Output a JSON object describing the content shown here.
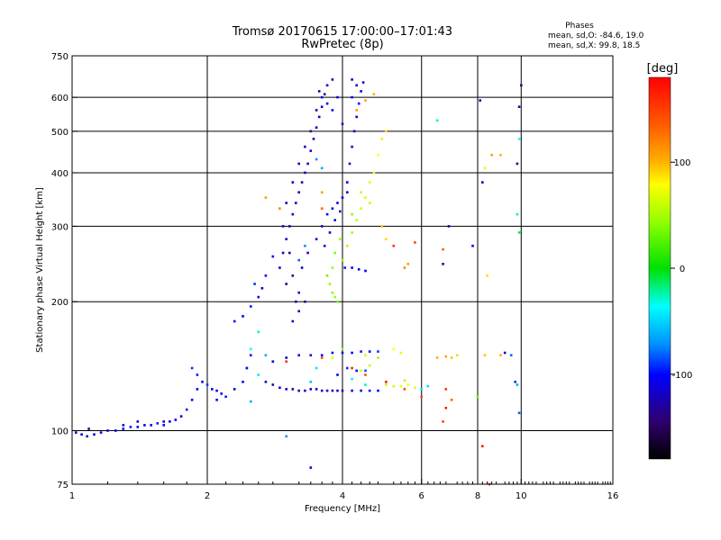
{
  "title_line1": "Tromsø 20170615 17:00:00–17:01:43",
  "title_line2": "RwPretec (8p)",
  "stats": {
    "header": "Phases",
    "line1": "mean, sd,O: -84.6, 19.0",
    "line2": "mean, sd,X:  99.8, 18.5"
  },
  "colorbar": {
    "label": "[deg]",
    "range": [
      -180,
      180
    ],
    "ticks": [
      {
        "value": 100,
        "label": "100"
      },
      {
        "value": 0,
        "label": "0"
      },
      {
        "value": -100,
        "label": "-100"
      }
    ]
  },
  "chart_data": {
    "type": "scatter",
    "title": "Tromsø 20170615 17:00:00–17:01:43 RwPretec (8p)",
    "xlabel": "Frequency [MHz]",
    "ylabel": "Stationary phase Virtual Height [km]",
    "xscale": "log",
    "yscale": "log",
    "xlim": [
      1,
      16
    ],
    "ylim": [
      75,
      750
    ],
    "x_ticks": [
      {
        "value": 1,
        "label": "1"
      },
      {
        "value": 2,
        "label": "2"
      },
      {
        "value": 4,
        "label": "4"
      },
      {
        "value": 6,
        "label": "6"
      },
      {
        "value": 8,
        "label": "8"
      },
      {
        "value": 10,
        "label": "10"
      },
      {
        "value": 16,
        "label": "16"
      }
    ],
    "y_ticks": [
      {
        "value": 75,
        "label": "75"
      },
      {
        "value": 100,
        "label": "100"
      },
      {
        "value": 200,
        "label": "200"
      },
      {
        "value": 300,
        "label": "300"
      },
      {
        "value": 400,
        "label": "400"
      },
      {
        "value": 500,
        "label": "500"
      },
      {
        "value": 600,
        "label": "600"
      },
      {
        "value": 750,
        "label": "750"
      }
    ],
    "x_gridlines": [
      2,
      4,
      6,
      8,
      10
    ],
    "y_gridlines": [
      100,
      200,
      300,
      400,
      500,
      600
    ],
    "color_variable": "phase [deg]",
    "points": [
      [
        1.02,
        99,
        -110
      ],
      [
        1.05,
        98,
        -115
      ],
      [
        1.08,
        97,
        -105
      ],
      [
        1.12,
        98,
        -110
      ],
      [
        1.16,
        99,
        -100
      ],
      [
        1.2,
        100,
        -105
      ],
      [
        1.25,
        100,
        -110
      ],
      [
        1.3,
        101,
        -100
      ],
      [
        1.35,
        102,
        -95
      ],
      [
        1.4,
        102,
        -105
      ],
      [
        1.45,
        103,
        -110
      ],
      [
        1.5,
        103,
        -100
      ],
      [
        1.55,
        104,
        -95
      ],
      [
        1.6,
        105,
        -105
      ],
      [
        1.65,
        105,
        -110
      ],
      [
        1.7,
        106,
        -100
      ],
      [
        1.75,
        108,
        -105
      ],
      [
        1.8,
        112,
        -95
      ],
      [
        1.85,
        118,
        -110
      ],
      [
        1.9,
        125,
        -100
      ],
      [
        1.95,
        130,
        -105
      ],
      [
        2.0,
        128,
        -90
      ],
      [
        2.05,
        125,
        -100
      ],
      [
        2.1,
        124,
        -110
      ],
      [
        2.15,
        122,
        -100
      ],
      [
        2.2,
        120,
        -95
      ],
      [
        1.85,
        140,
        -90
      ],
      [
        1.9,
        135,
        -95
      ],
      [
        2.1,
        118,
        -100
      ],
      [
        1.3,
        103,
        -110
      ],
      [
        1.4,
        105,
        -120
      ],
      [
        1.09,
        101,
        -130
      ],
      [
        1.6,
        103,
        -100
      ],
      [
        2.3,
        180,
        -100
      ],
      [
        2.4,
        185,
        -105
      ],
      [
        2.5,
        195,
        -95
      ],
      [
        2.6,
        205,
        -110
      ],
      [
        2.7,
        230,
        -100
      ],
      [
        2.8,
        255,
        -105
      ],
      [
        2.55,
        220,
        -90
      ],
      [
        2.65,
        215,
        -115
      ],
      [
        2.9,
        240,
        -120
      ],
      [
        2.95,
        260,
        -125
      ],
      [
        3.0,
        280,
        -115
      ],
      [
        3.05,
        300,
        -130
      ],
      [
        3.1,
        320,
        -120
      ],
      [
        3.15,
        340,
        -125
      ],
      [
        3.2,
        360,
        -115
      ],
      [
        3.25,
        380,
        -130
      ],
      [
        3.3,
        400,
        -120
      ],
      [
        3.35,
        420,
        -125
      ],
      [
        3.4,
        450,
        -115
      ],
      [
        3.45,
        480,
        -120
      ],
      [
        3.5,
        510,
        -125
      ],
      [
        3.55,
        540,
        -115
      ],
      [
        3.6,
        570,
        -120
      ],
      [
        3.65,
        610,
        -125
      ],
      [
        3.7,
        640,
        -115
      ],
      [
        3.0,
        220,
        -125
      ],
      [
        3.1,
        230,
        -130
      ],
      [
        3.2,
        210,
        -120
      ],
      [
        3.3,
        200,
        -125
      ],
      [
        3.2,
        190,
        -130
      ],
      [
        3.1,
        180,
        -120
      ],
      [
        3.15,
        200,
        -125
      ],
      [
        3.25,
        240,
        -115
      ],
      [
        3.35,
        260,
        -120
      ],
      [
        3.05,
        260,
        -130
      ],
      [
        2.95,
        300,
        -120
      ],
      [
        3.0,
        340,
        -125
      ],
      [
        3.1,
        380,
        -115
      ],
      [
        3.2,
        420,
        -120
      ],
      [
        3.3,
        460,
        -125
      ],
      [
        3.4,
        500,
        -130
      ],
      [
        3.5,
        560,
        -120
      ],
      [
        3.55,
        620,
        -125
      ],
      [
        3.5,
        280,
        -110
      ],
      [
        3.6,
        300,
        -115
      ],
      [
        3.7,
        320,
        -105
      ],
      [
        3.8,
        330,
        -110
      ],
      [
        3.9,
        340,
        -115
      ],
      [
        4.0,
        350,
        -105
      ],
      [
        4.1,
        360,
        -110
      ],
      [
        3.65,
        270,
        -115
      ],
      [
        3.75,
        290,
        -105
      ],
      [
        3.85,
        310,
        -110
      ],
      [
        3.95,
        325,
        -100
      ],
      [
        4.1,
        380,
        -110
      ],
      [
        4.15,
        420,
        -115
      ],
      [
        4.2,
        460,
        -105
      ],
      [
        4.25,
        500,
        -110
      ],
      [
        4.3,
        540,
        -115
      ],
      [
        4.35,
        580,
        -105
      ],
      [
        4.4,
        620,
        -110
      ],
      [
        4.45,
        650,
        -115
      ],
      [
        4.2,
        600,
        -105
      ],
      [
        4.3,
        640,
        -110
      ],
      [
        3.6,
        600,
        -100
      ],
      [
        3.8,
        560,
        -105
      ],
      [
        4.0,
        520,
        -110
      ],
      [
        3.9,
        600,
        -100
      ],
      [
        3.7,
        580,
        -105
      ],
      [
        4.05,
        240,
        -95
      ],
      [
        4.2,
        240,
        -100
      ],
      [
        4.35,
        238,
        -105
      ],
      [
        4.5,
        236,
        -100
      ],
      [
        3.7,
        230,
        30
      ],
      [
        3.75,
        220,
        40
      ],
      [
        3.8,
        210,
        35
      ],
      [
        3.85,
        205,
        45
      ],
      [
        3.9,
        200,
        30
      ],
      [
        3.8,
        240,
        40
      ],
      [
        3.85,
        260,
        35
      ],
      [
        3.95,
        280,
        45
      ],
      [
        4.0,
        250,
        40
      ],
      [
        4.1,
        270,
        50
      ],
      [
        4.2,
        290,
        45
      ],
      [
        4.3,
        310,
        55
      ],
      [
        4.4,
        330,
        60
      ],
      [
        4.5,
        350,
        65
      ],
      [
        4.6,
        380,
        70
      ],
      [
        4.7,
        400,
        75
      ],
      [
        4.8,
        440,
        80
      ],
      [
        4.9,
        480,
        85
      ],
      [
        5.0,
        500,
        90
      ],
      [
        4.2,
        320,
        40
      ],
      [
        4.4,
        360,
        55
      ],
      [
        4.6,
        340,
        60
      ],
      [
        4.3,
        560,
        110
      ],
      [
        4.5,
        590,
        105
      ],
      [
        4.7,
        610,
        100
      ],
      [
        4.9,
        300,
        95
      ],
      [
        5.0,
        280,
        90
      ],
      [
        5.5,
        240,
        120
      ],
      [
        5.6,
        245,
        110
      ],
      [
        2.7,
        130,
        -120
      ],
      [
        2.8,
        128,
        -125
      ],
      [
        2.9,
        126,
        -115
      ],
      [
        3.0,
        125,
        -120
      ],
      [
        3.1,
        125,
        -125
      ],
      [
        3.2,
        124,
        -130
      ],
      [
        3.3,
        124,
        -120
      ],
      [
        3.4,
        125,
        -125
      ],
      [
        3.5,
        125,
        -115
      ],
      [
        3.6,
        124,
        -120
      ],
      [
        3.7,
        124,
        -125
      ],
      [
        3.8,
        124,
        -115
      ],
      [
        3.9,
        124,
        -120
      ],
      [
        4.0,
        124,
        -110
      ],
      [
        4.2,
        124,
        -115
      ],
      [
        4.4,
        124,
        -110
      ],
      [
        4.6,
        124,
        -100
      ],
      [
        4.8,
        124,
        -105
      ],
      [
        2.8,
        145,
        -110
      ],
      [
        3.0,
        148,
        -115
      ],
      [
        3.2,
        150,
        -105
      ],
      [
        3.4,
        150,
        -110
      ],
      [
        3.6,
        150,
        -100
      ],
      [
        3.8,
        152,
        -110
      ],
      [
        4.0,
        152,
        -105
      ],
      [
        4.2,
        152,
        -100
      ],
      [
        4.4,
        153,
        -95
      ],
      [
        4.6,
        153,
        -100
      ],
      [
        4.8,
        153,
        -90
      ],
      [
        3.9,
        135,
        -100
      ],
      [
        4.1,
        140,
        -90
      ],
      [
        4.3,
        138,
        -100
      ],
      [
        4.5,
        138,
        -85
      ],
      [
        5.0,
        128,
        60
      ],
      [
        5.2,
        127,
        65
      ],
      [
        5.4,
        127,
        70
      ],
      [
        5.6,
        128,
        75
      ],
      [
        5.8,
        126,
        65
      ],
      [
        5.5,
        131,
        55
      ],
      [
        6.5,
        148,
        100
      ],
      [
        6.8,
        149,
        110
      ],
      [
        7.0,
        148,
        95
      ],
      [
        7.2,
        150,
        90
      ],
      [
        8.3,
        150,
        95
      ],
      [
        9.0,
        150,
        100
      ],
      [
        9.2,
        152,
        -115
      ],
      [
        4.2,
        140,
        50
      ],
      [
        4.4,
        138,
        60
      ],
      [
        4.6,
        142,
        55
      ],
      [
        4.8,
        148,
        45
      ],
      [
        5.2,
        155,
        80
      ],
      [
        5.4,
        152,
        70
      ],
      [
        4.5,
        150,
        65
      ],
      [
        4.0,
        155,
        40
      ],
      [
        3.8,
        148,
        70
      ],
      [
        2.5,
        155,
        -30
      ],
      [
        2.45,
        140,
        -25
      ],
      [
        2.6,
        170,
        -20
      ],
      [
        2.7,
        150,
        -60
      ],
      [
        2.6,
        135,
        -40
      ],
      [
        3.4,
        130,
        -55
      ],
      [
        3.5,
        140,
        -40
      ],
      [
        4.2,
        132,
        -35
      ],
      [
        4.5,
        128,
        -20
      ],
      [
        5.0,
        130,
        -30
      ],
      [
        6.2,
        127,
        -45
      ],
      [
        6.0,
        125,
        -40
      ],
      [
        2.3,
        125,
        -110
      ],
      [
        2.4,
        130,
        -100
      ],
      [
        2.45,
        140,
        -105
      ],
      [
        2.5,
        150,
        -95
      ],
      [
        3.2,
        250,
        -80
      ],
      [
        3.3,
        270,
        -70
      ],
      [
        3.6,
        410,
        -60
      ],
      [
        3.5,
        430,
        -70
      ],
      [
        4.2,
        660,
        -120
      ],
      [
        3.8,
        660,
        -130
      ],
      [
        3.0,
        145,
        160
      ],
      [
        3.6,
        148,
        150
      ],
      [
        4.2,
        140,
        160
      ],
      [
        4.5,
        135,
        150
      ],
      [
        5.0,
        130,
        170
      ],
      [
        5.5,
        125,
        150
      ],
      [
        6.0,
        120,
        150
      ],
      [
        6.8,
        125,
        160
      ],
      [
        7.0,
        118,
        140
      ],
      [
        2.7,
        350,
        110
      ],
      [
        2.9,
        330,
        120
      ],
      [
        3.6,
        360,
        110
      ],
      [
        3.6,
        330,
        140
      ],
      [
        5.2,
        270,
        160
      ],
      [
        5.8,
        275,
        150
      ],
      [
        6.7,
        265,
        140
      ],
      [
        6.5,
        530,
        -20
      ],
      [
        6.9,
        300,
        -120
      ],
      [
        6.7,
        245,
        -140
      ],
      [
        7.8,
        270,
        -110
      ],
      [
        8.1,
        590,
        -130
      ],
      [
        8.2,
        380,
        -125
      ],
      [
        8.4,
        230,
        90
      ],
      [
        8.6,
        440,
        110
      ],
      [
        9.0,
        440,
        100
      ],
      [
        9.8,
        420,
        -140
      ],
      [
        9.9,
        570,
        -130
      ],
      [
        10.0,
        640,
        -135
      ],
      [
        9.9,
        290,
        -10
      ],
      [
        9.8,
        320,
        -20
      ],
      [
        9.9,
        480,
        -30
      ],
      [
        9.5,
        150,
        -80
      ],
      [
        9.7,
        130,
        -90
      ],
      [
        9.9,
        110,
        -80
      ],
      [
        9.8,
        128,
        -60
      ],
      [
        8.3,
        410,
        70
      ],
      [
        8.2,
        92,
        170
      ],
      [
        8.5,
        75,
        160
      ],
      [
        8.0,
        120,
        30
      ],
      [
        6.7,
        105,
        150
      ],
      [
        6.8,
        113,
        170
      ],
      [
        3.4,
        82,
        -110
      ],
      [
        3.0,
        97,
        -70
      ],
      [
        2.5,
        117,
        -60
      ]
    ]
  }
}
